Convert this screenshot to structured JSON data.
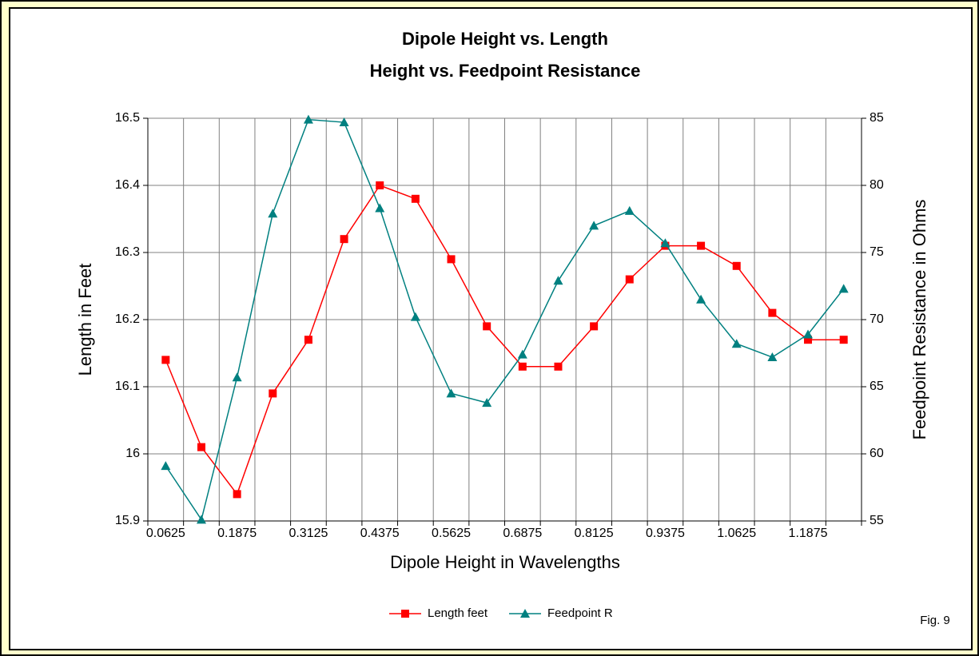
{
  "chart_data": {
    "type": "line",
    "title": "Dipole Height vs. Length",
    "subtitle": "Height vs. Feedpoint Resistance",
    "x_label": "Dipole Height in Wavelengths",
    "y_label": "Length in Feet",
    "y2_label": "Feedpoint Resistance in Ohms",
    "annotation": "Fig. 9",
    "categories": [
      "0.0625",
      null,
      "0.1875",
      null,
      "0.3125",
      null,
      "0.4375",
      null,
      "0.5625",
      null,
      "0.6875",
      null,
      "0.8125",
      null,
      "0.9375",
      null,
      "1.0625",
      null,
      "1.1875",
      null
    ],
    "series": [
      {
        "name": "Length feet",
        "color": "#ff0000",
        "marker": "square",
        "values": [
          16.14,
          16.01,
          15.94,
          16.09,
          16.17,
          16.32,
          16.4,
          16.38,
          16.29,
          16.19,
          16.13,
          16.13,
          16.19,
          16.26,
          16.31,
          16.31,
          16.28,
          16.21,
          16.17,
          16.17
        ]
      },
      {
        "name": "Feedpoint R",
        "color": "#008080",
        "marker": "triangle",
        "axis": "y2",
        "values": [
          59.1,
          55.1,
          65.7,
          77.9,
          84.9,
          84.7,
          78.3,
          70.2,
          64.5,
          63.8,
          67.4,
          72.9,
          77.0,
          78.1,
          75.7,
          71.5,
          68.2,
          67.2,
          68.9,
          72.3
        ]
      }
    ],
    "ylim": [
      15.9,
      16.5
    ],
    "yticks": [
      15.9,
      16,
      16.1,
      16.2,
      16.3,
      16.4,
      16.5
    ],
    "y2lim": [
      55,
      85
    ],
    "y2ticks": [
      55,
      60,
      65,
      70,
      75,
      80,
      85
    ],
    "grid": true,
    "legend": "bottom"
  }
}
